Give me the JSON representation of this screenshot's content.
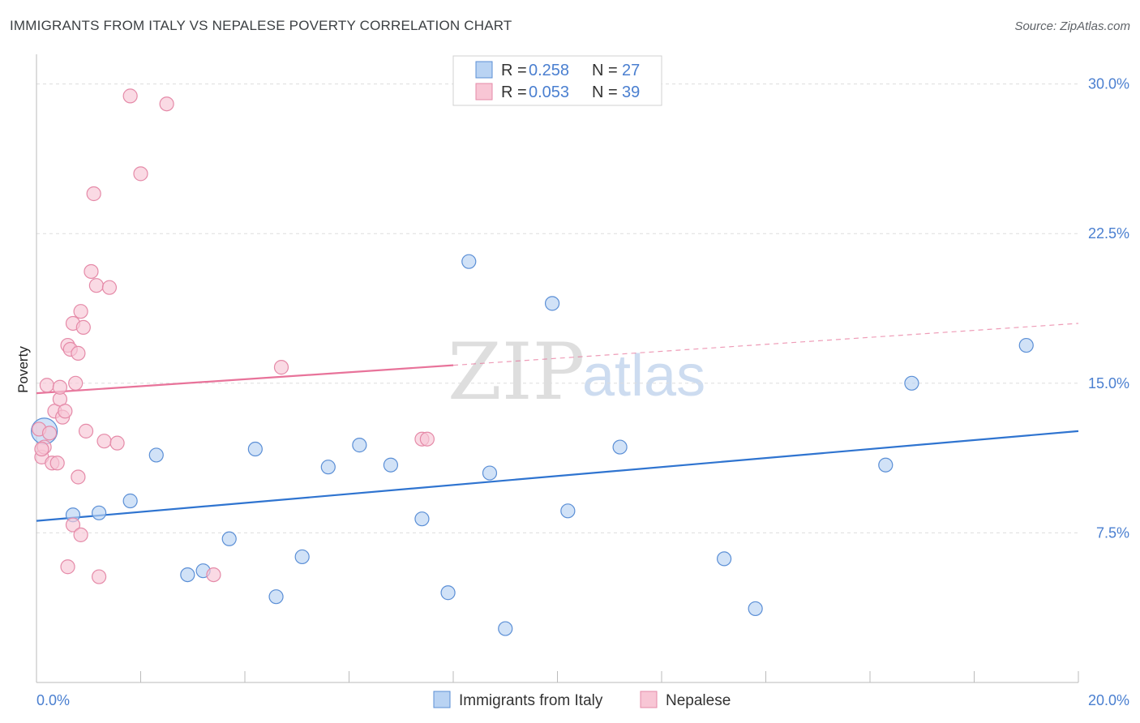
{
  "title": "IMMIGRANTS FROM ITALY VS NEPALESE POVERTY CORRELATION CHART",
  "source": "Source: ZipAtlas.com",
  "watermark": {
    "zip": "ZIP",
    "atlas": "atlas"
  },
  "colors": {
    "blue_fill": "#b9d3f3",
    "blue_stroke": "#5b8fd6",
    "blue_line": "#2f74d0",
    "pink_fill": "#f8c6d5",
    "pink_stroke": "#e58aa8",
    "pink_line": "#e8739a",
    "grid": "#dddddd",
    "axis": "#bbbbbb"
  },
  "legend": {
    "rows": [
      {
        "r_label": "R = ",
        "r_value": "0.258",
        "n_label": "N = ",
        "n_value": "27",
        "series": "blue"
      },
      {
        "r_label": "R = ",
        "r_value": "0.053",
        "n_label": "N = ",
        "n_value": "39",
        "series": "pink"
      }
    ]
  },
  "bottom_legend": [
    {
      "label": "Immigrants from Italy",
      "series": "blue"
    },
    {
      "label": "Nepalese",
      "series": "pink"
    }
  ],
  "chart_data": {
    "type": "scatter",
    "title": "IMMIGRANTS FROM ITALY VS NEPALESE POVERTY CORRELATION CHART",
    "xlabel": "",
    "ylabel": "Poverty",
    "xlim": [
      0,
      20
    ],
    "ylim": [
      0,
      31
    ],
    "x_tick_labels": [
      {
        "value": 0,
        "label": "0.0%"
      },
      {
        "value": 20,
        "label": "20.0%"
      }
    ],
    "x_minor_ticks": [
      0,
      2,
      4,
      6,
      8,
      10,
      12,
      14,
      16,
      18,
      20
    ],
    "y_ticks": [
      {
        "value": 7.5,
        "label": "7.5%"
      },
      {
        "value": 15.0,
        "label": "15.0%"
      },
      {
        "value": 22.5,
        "label": "22.5%"
      },
      {
        "value": 30.0,
        "label": "30.0%"
      }
    ],
    "series": [
      {
        "name": "Immigrants from Italy",
        "color": "blue",
        "points": [
          {
            "x": 0.15,
            "y": 12.6,
            "big": true
          },
          {
            "x": 0.7,
            "y": 8.4
          },
          {
            "x": 1.2,
            "y": 8.5
          },
          {
            "x": 1.8,
            "y": 9.1
          },
          {
            "x": 2.3,
            "y": 11.4
          },
          {
            "x": 2.9,
            "y": 5.4
          },
          {
            "x": 3.2,
            "y": 5.6
          },
          {
            "x": 3.7,
            "y": 7.2
          },
          {
            "x": 4.2,
            "y": 11.7
          },
          {
            "x": 4.6,
            "y": 4.3
          },
          {
            "x": 5.1,
            "y": 6.3
          },
          {
            "x": 5.6,
            "y": 10.8
          },
          {
            "x": 6.2,
            "y": 11.9
          },
          {
            "x": 6.8,
            "y": 10.9
          },
          {
            "x": 7.4,
            "y": 8.2
          },
          {
            "x": 7.9,
            "y": 4.5
          },
          {
            "x": 8.3,
            "y": 21.1
          },
          {
            "x": 8.7,
            "y": 10.5
          },
          {
            "x": 9.0,
            "y": 2.7
          },
          {
            "x": 9.9,
            "y": 19.0
          },
          {
            "x": 10.2,
            "y": 8.6
          },
          {
            "x": 11.2,
            "y": 11.8
          },
          {
            "x": 13.2,
            "y": 6.2
          },
          {
            "x": 13.8,
            "y": 3.7
          },
          {
            "x": 16.3,
            "y": 10.9
          },
          {
            "x": 16.8,
            "y": 15.0
          },
          {
            "x": 19.0,
            "y": 16.9
          }
        ],
        "trend": {
          "x0": 0,
          "y0": 8.1,
          "x1": 20,
          "y1": 12.6,
          "solid_to": 20
        }
      },
      {
        "name": "Nepalese",
        "color": "pink",
        "points": [
          {
            "x": 0.05,
            "y": 12.7
          },
          {
            "x": 0.1,
            "y": 11.3
          },
          {
            "x": 0.15,
            "y": 11.8
          },
          {
            "x": 0.2,
            "y": 14.9
          },
          {
            "x": 0.25,
            "y": 12.5
          },
          {
            "x": 0.3,
            "y": 11.0
          },
          {
            "x": 0.35,
            "y": 13.6
          },
          {
            "x": 0.4,
            "y": 11.0
          },
          {
            "x": 0.45,
            "y": 14.2
          },
          {
            "x": 0.45,
            "y": 14.8
          },
          {
            "x": 0.5,
            "y": 13.3
          },
          {
            "x": 0.55,
            "y": 13.6
          },
          {
            "x": 0.6,
            "y": 5.8
          },
          {
            "x": 0.6,
            "y": 16.9
          },
          {
            "x": 0.65,
            "y": 16.7
          },
          {
            "x": 0.7,
            "y": 18.0
          },
          {
            "x": 0.7,
            "y": 7.9
          },
          {
            "x": 0.75,
            "y": 15.0
          },
          {
            "x": 0.8,
            "y": 10.3
          },
          {
            "x": 0.8,
            "y": 16.5
          },
          {
            "x": 0.85,
            "y": 7.4
          },
          {
            "x": 0.85,
            "y": 18.6
          },
          {
            "x": 0.9,
            "y": 17.8
          },
          {
            "x": 0.95,
            "y": 12.6
          },
          {
            "x": 1.05,
            "y": 20.6
          },
          {
            "x": 1.1,
            "y": 24.5
          },
          {
            "x": 1.15,
            "y": 19.9
          },
          {
            "x": 1.2,
            "y": 5.3
          },
          {
            "x": 1.3,
            "y": 12.1
          },
          {
            "x": 1.4,
            "y": 19.8
          },
          {
            "x": 1.55,
            "y": 12.0
          },
          {
            "x": 1.8,
            "y": 29.4
          },
          {
            "x": 2.0,
            "y": 25.5
          },
          {
            "x": 2.5,
            "y": 29.0
          },
          {
            "x": 3.4,
            "y": 5.4
          },
          {
            "x": 4.7,
            "y": 15.8
          },
          {
            "x": 7.4,
            "y": 12.2
          },
          {
            "x": 7.5,
            "y": 12.2
          },
          {
            "x": 0.1,
            "y": 11.7
          }
        ],
        "trend": {
          "x0": 0,
          "y0": 14.5,
          "x1": 20,
          "y1": 18.0,
          "solid_to": 8.0
        }
      }
    ]
  }
}
